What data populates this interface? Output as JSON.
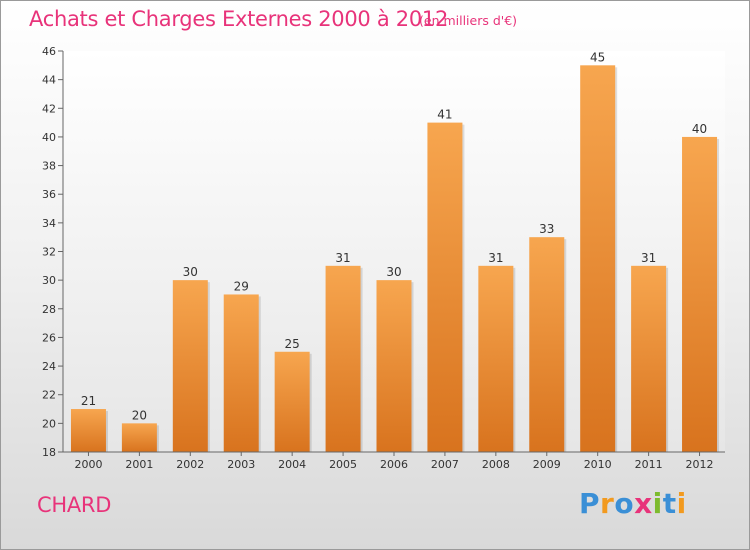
{
  "header": {
    "title": "Achats et Charges Externes 2000 à 2012",
    "unit": "(en milliers d'€)"
  },
  "footer": {
    "commune": "CHARD",
    "logo_text": "Proxiti",
    "logo_colors": [
      "#3a8fd6",
      "#f29a1f",
      "#3a8fd6",
      "#e8337a",
      "#7dbb2e",
      "#3a8fd6",
      "#f29a1f"
    ]
  },
  "colors": {
    "bar_top": "#f7a64f",
    "bar_bottom": "#d8731e",
    "accent": "#e8337a"
  },
  "chart_data": {
    "type": "bar",
    "title": "Achats et Charges Externes 2000 à 2012",
    "subtitle": "(en milliers d'€)",
    "categories": [
      "2000",
      "2001",
      "2002",
      "2003",
      "2004",
      "2005",
      "2006",
      "2007",
      "2008",
      "2009",
      "2010",
      "2011",
      "2012"
    ],
    "values": [
      21,
      20,
      30,
      29,
      25,
      31,
      30,
      41,
      31,
      33,
      45,
      31,
      40
    ],
    "ylim": [
      18,
      46
    ],
    "yticks": [
      18,
      20,
      22,
      24,
      26,
      28,
      30,
      32,
      34,
      36,
      38,
      40,
      42,
      44,
      46
    ],
    "grid": false,
    "data_labels": true
  }
}
